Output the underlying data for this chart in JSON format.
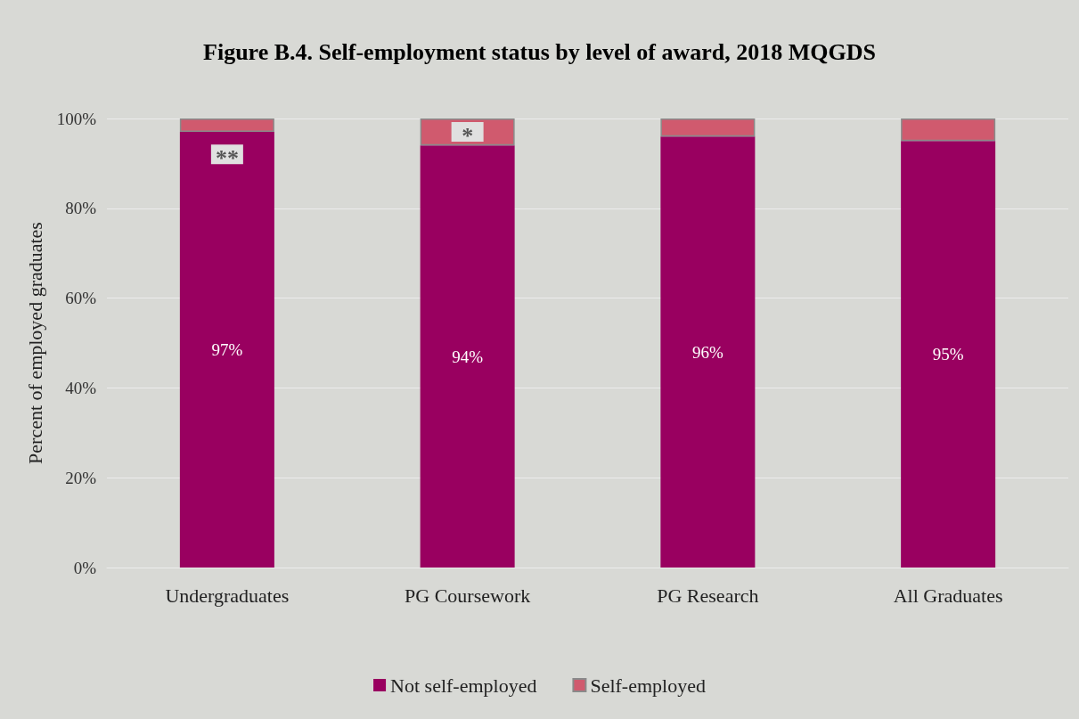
{
  "chart_data": {
    "type": "bar",
    "stacked": true,
    "title": "Figure B.4. Self-employment status by level of award, 2018 MQGDS",
    "ylabel": "Percent of employed graduates",
    "categories": [
      "Undergraduates",
      "PG Coursework",
      "PG Research",
      "All Graduates"
    ],
    "series": [
      {
        "name": "Not self-employed",
        "color": "#990060",
        "values": [
          97,
          94,
          96,
          95
        ],
        "value_labels": [
          "97%",
          "94%",
          "96%",
          "95%"
        ]
      },
      {
        "name": "Self-employed",
        "color": "#d05a6e",
        "values": [
          3,
          6,
          4,
          5
        ]
      }
    ],
    "ylim": [
      0,
      100
    ],
    "yticks": [
      {
        "value": 0,
        "label": "0%"
      },
      {
        "value": 20,
        "label": "20%"
      },
      {
        "value": 40,
        "label": "40%"
      },
      {
        "value": 60,
        "label": "60%"
      },
      {
        "value": 80,
        "label": "80%"
      },
      {
        "value": 100,
        "label": "100%"
      }
    ],
    "annotations": [
      {
        "text": "**",
        "x": "Undergraduates",
        "y": 92
      },
      {
        "text": "*",
        "x": "PG Coursework",
        "y": 97
      }
    ],
    "grid": "y",
    "legend": "bottom"
  }
}
